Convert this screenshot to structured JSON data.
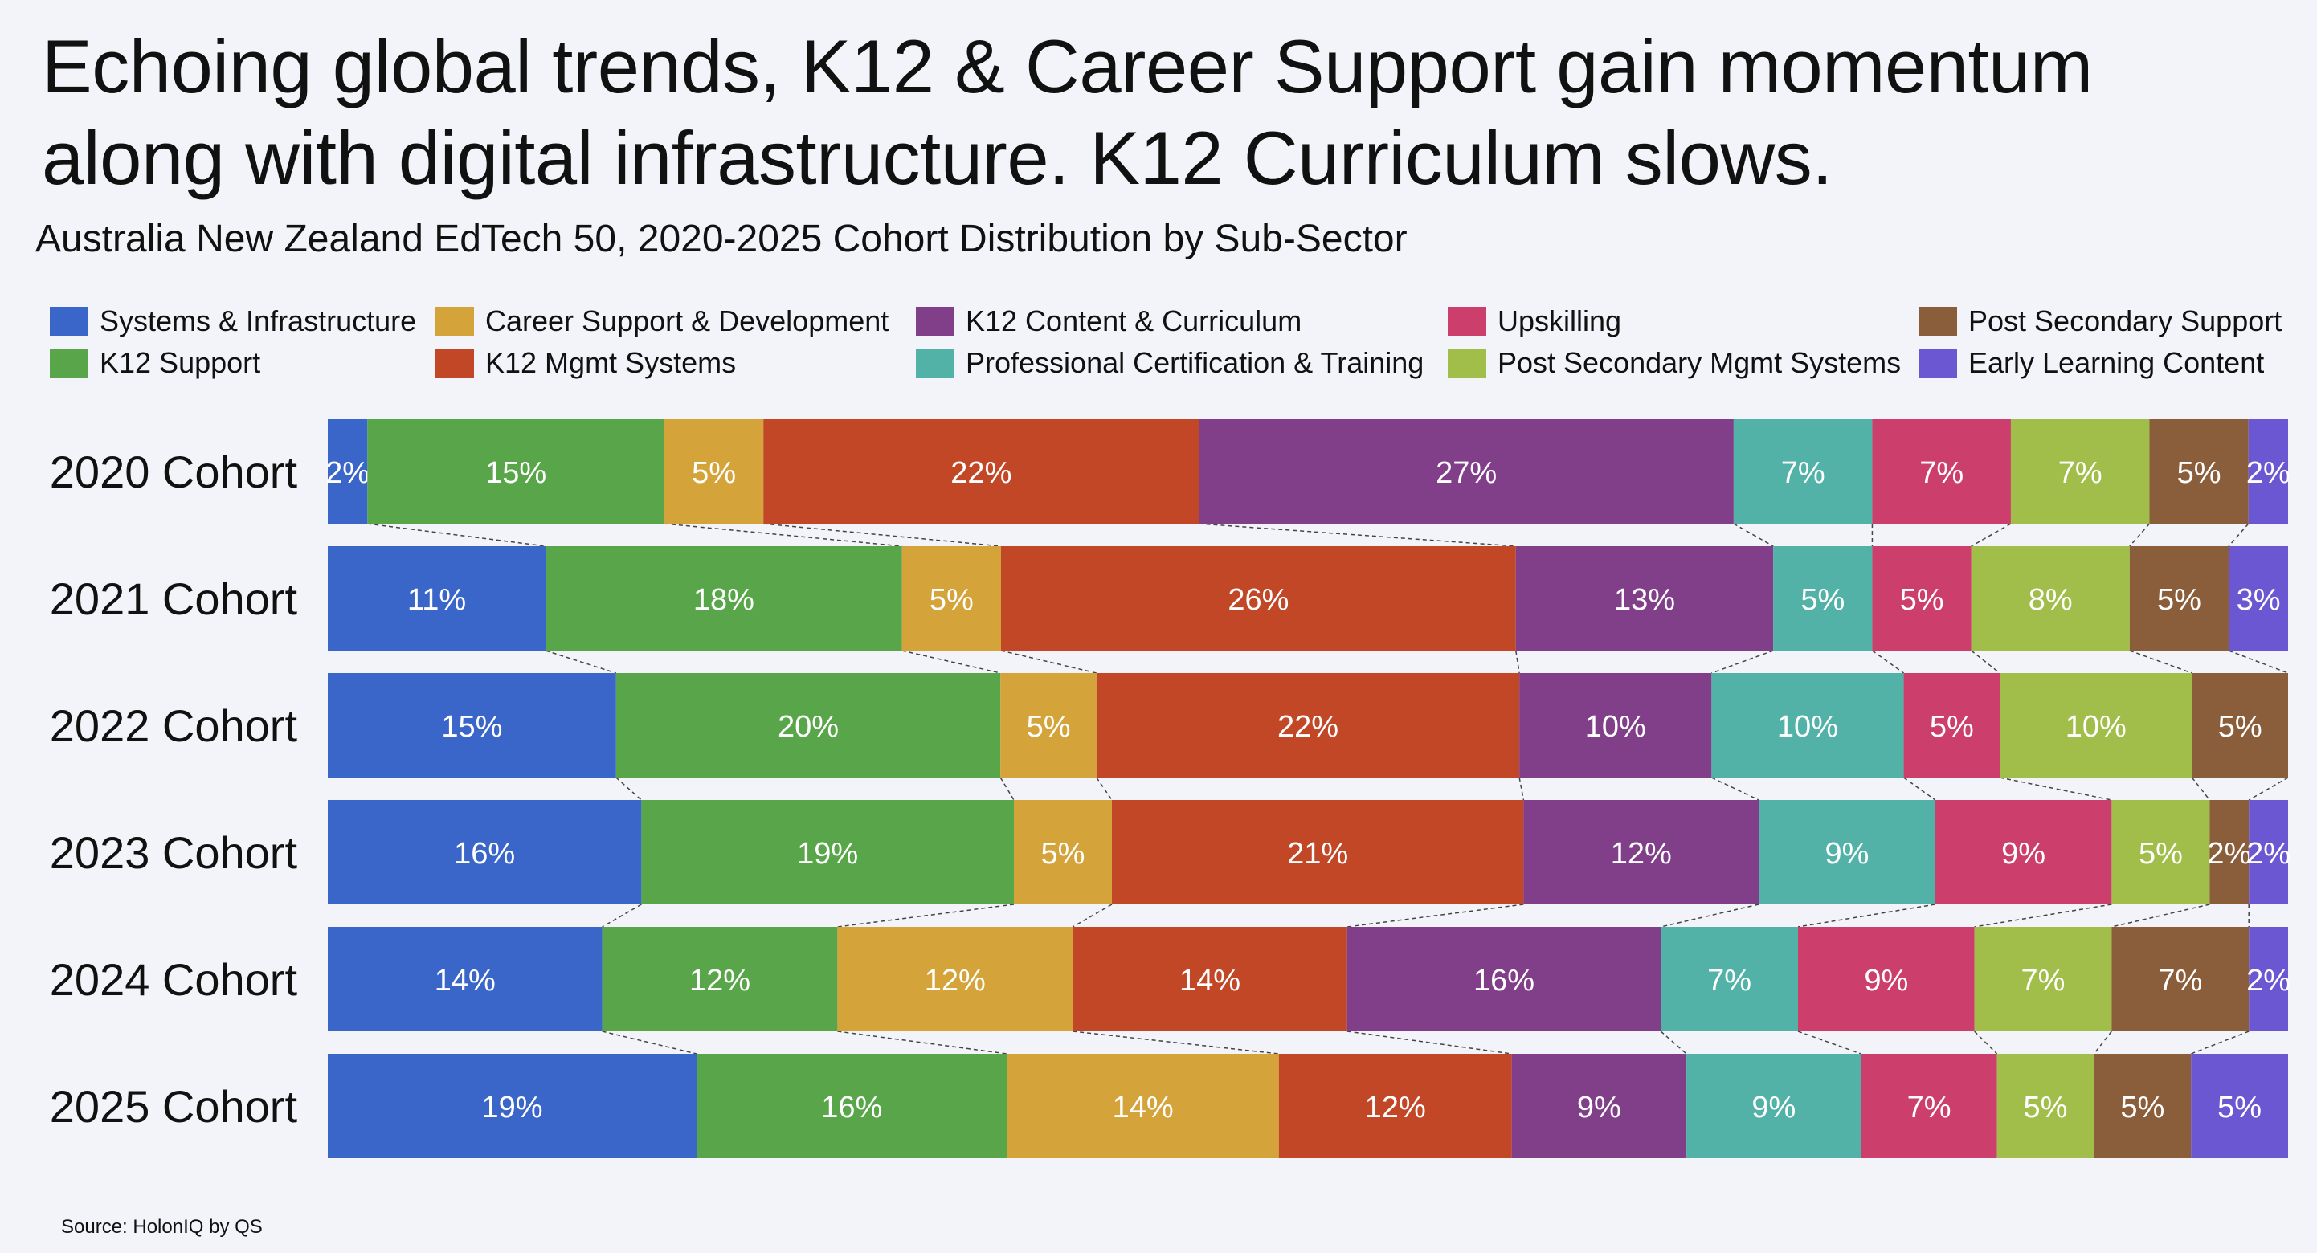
{
  "title": "Echoing global trends, K12 & Career Support gain momentum along with digital infrastructure. K12 Curriculum slows.",
  "subtitle": "Australia New Zealand EdTech 50, 2020-2025 Cohort Distribution by Sub-Sector",
  "source": "Source: HolonIQ by QS",
  "chart_data": {
    "type": "bar",
    "orientation": "horizontal",
    "stacked": "100%",
    "categories": [
      "2020 Cohort",
      "2021 Cohort",
      "2022 Cohort",
      "2023 Cohort",
      "2024 Cohort",
      "2025 Cohort"
    ],
    "series": [
      {
        "name": "Systems & Infrastructure",
        "color": "#3b66c9",
        "values": [
          2,
          11,
          15,
          16,
          14,
          19
        ],
        "labels": [
          "2%",
          "11%",
          "15%",
          "16%",
          "14%",
          "19%"
        ]
      },
      {
        "name": "K12 Support",
        "color": "#58a649",
        "values": [
          15,
          18,
          20,
          19,
          12,
          16
        ],
        "labels": [
          "15%",
          "18%",
          "20%",
          "19%",
          "12%",
          "16%"
        ]
      },
      {
        "name": "Career Support & Development",
        "color": "#d4a33a",
        "values": [
          5,
          5,
          5,
          5,
          12,
          14
        ],
        "labels": [
          "5%",
          "5%",
          "5%",
          "5%",
          "12%",
          "14%"
        ]
      },
      {
        "name": "K12 Mgmt Systems",
        "color": "#c24727",
        "values": [
          22,
          26,
          22,
          21,
          14,
          12
        ],
        "labels": [
          "22%",
          "26%",
          "22%",
          "21%",
          "14%",
          "12%"
        ]
      },
      {
        "name": "K12 Content & Curriculum",
        "color": "#813f8a",
        "values": [
          27,
          13,
          10,
          12,
          16,
          9
        ],
        "labels": [
          "27%",
          "13%",
          "10%",
          "12%",
          "16%",
          "9%"
        ]
      },
      {
        "name": "Professional Certification & Training",
        "color": "#52b2a7",
        "values": [
          7,
          5,
          10,
          9,
          7,
          9
        ],
        "labels": [
          "7%",
          "5%",
          "10%",
          "9%",
          "7%",
          "9%"
        ]
      },
      {
        "name": "Upskilling",
        "color": "#cc3e6c",
        "values": [
          7,
          5,
          5,
          9,
          9,
          7
        ],
        "labels": [
          "7%",
          "5%",
          "5%",
          "9%",
          "9%",
          "7%"
        ]
      },
      {
        "name": "Post Secondary Mgmt Systems",
        "color": "#a1bd4a",
        "values": [
          7,
          8,
          10,
          5,
          7,
          5
        ],
        "labels": [
          "7%",
          "8%",
          "10%",
          "5%",
          "7%",
          "5%"
        ]
      },
      {
        "name": "Post Secondary Support",
        "color": "#8b5e3b",
        "values": [
          5,
          5,
          5,
          2,
          7,
          5
        ],
        "labels": [
          "5%",
          "5%",
          "5%",
          "2%",
          "7%",
          "5%"
        ]
      },
      {
        "name": "Early Learning Content",
        "color": "#6c57d3",
        "values": [
          2,
          3,
          0,
          2,
          2,
          5
        ],
        "labels": [
          "2%",
          "3%",
          "",
          "2%",
          "2%",
          "5%"
        ]
      }
    ],
    "legend_position": "top",
    "xlim": [
      0,
      100
    ]
  }
}
